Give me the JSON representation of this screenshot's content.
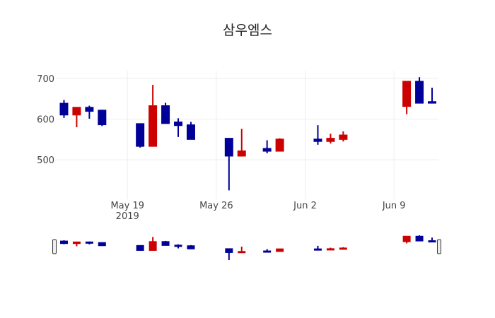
{
  "chart_data": {
    "type": "candlestick",
    "title": "삼우엠스",
    "xlabel": "",
    "ylabel": "",
    "increasing_color": "#cc0000",
    "decreasing_color": "#000099",
    "grid": true,
    "ylim": [
      403,
      719
    ],
    "xlim": [
      "2019-05-13T10:00",
      "2019-06-12T12:00"
    ],
    "yticks": [
      500,
      600,
      700
    ],
    "xticks": [
      {
        "date": "2019-05-19",
        "label": "May 19",
        "sublabel": "2019"
      },
      {
        "date": "2019-05-26",
        "label": "May 26",
        "sublabel": ""
      },
      {
        "date": "2019-06-02",
        "label": "Jun 2",
        "sublabel": ""
      },
      {
        "date": "2019-06-09",
        "label": "Jun 9",
        "sublabel": ""
      }
    ],
    "rangeslider": true,
    "candles": [
      {
        "date": "2019-05-14",
        "open": 639,
        "high": 647,
        "low": 603,
        "close": 610
      },
      {
        "date": "2019-05-15",
        "open": 610,
        "high": 629,
        "low": 580,
        "close": 629
      },
      {
        "date": "2019-05-16",
        "open": 629,
        "high": 633,
        "low": 601,
        "close": 619
      },
      {
        "date": "2019-05-17",
        "open": 622,
        "high": 623,
        "low": 583,
        "close": 586
      },
      {
        "date": "2019-05-20",
        "open": 589,
        "high": 589,
        "low": 530,
        "close": 533
      },
      {
        "date": "2019-05-21",
        "open": 533,
        "high": 684,
        "low": 533,
        "close": 633
      },
      {
        "date": "2019-05-22",
        "open": 633,
        "high": 640,
        "low": 589,
        "close": 589
      },
      {
        "date": "2019-05-23",
        "open": 593,
        "high": 602,
        "low": 556,
        "close": 584
      },
      {
        "date": "2019-05-24",
        "open": 586,
        "high": 593,
        "low": 550,
        "close": 550
      },
      {
        "date": "2019-05-27",
        "open": 553,
        "high": 553,
        "low": 425,
        "close": 509
      },
      {
        "date": "2019-05-28",
        "open": 509,
        "high": 576,
        "low": 508,
        "close": 522
      },
      {
        "date": "2019-05-30",
        "open": 528,
        "high": 548,
        "low": 516,
        "close": 521
      },
      {
        "date": "2019-05-31",
        "open": 521,
        "high": 553,
        "low": 521,
        "close": 551
      },
      {
        "date": "2019-06-03",
        "open": 551,
        "high": 585,
        "low": 537,
        "close": 545
      },
      {
        "date": "2019-06-04",
        "open": 545,
        "high": 564,
        "low": 540,
        "close": 553
      },
      {
        "date": "2019-06-05",
        "open": 550,
        "high": 570,
        "low": 545,
        "close": 561
      },
      {
        "date": "2019-06-10",
        "open": 631,
        "high": 693,
        "low": 612,
        "close": 693
      },
      {
        "date": "2019-06-11",
        "open": 693,
        "high": 703,
        "low": 639,
        "close": 639
      },
      {
        "date": "2019-06-12",
        "open": 643,
        "high": 677,
        "low": 639,
        "close": 639
      }
    ]
  }
}
